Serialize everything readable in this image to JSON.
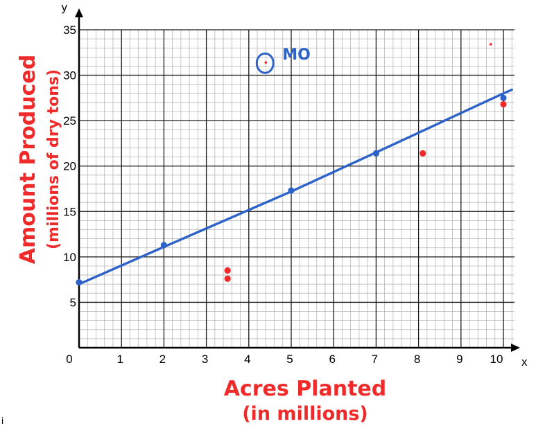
{
  "chart_data": {
    "type": "scatter",
    "xlabel": "Acres Planted (in millions)",
    "xlabel_lines": [
      "Acres Planted",
      "(in millions)"
    ],
    "ylabel": "Amount Produced (millions of dry tons)",
    "ylabel_lines": [
      "Amount Produced",
      "(millions of dry tons)"
    ],
    "x_axis_letter": "x",
    "y_axis_letter": "y",
    "xlim": [
      0,
      10
    ],
    "ylim": [
      0,
      35
    ],
    "x_ticks": [
      "0",
      "1",
      "2",
      "3",
      "4",
      "5",
      "6",
      "7",
      "8",
      "9",
      "10"
    ],
    "y_ticks": [
      "5",
      "10",
      "15",
      "20",
      "25",
      "30",
      "35"
    ],
    "grid": true,
    "series": [
      {
        "color": "#ee2a2a",
        "points": [
          {
            "x": 3.5,
            "y": 8.5
          },
          {
            "x": 3.5,
            "y": 7.6
          },
          {
            "x": 4.4,
            "y": 31.4
          },
          {
            "x": 8.1,
            "y": 21.4
          },
          {
            "x": 9.7,
            "y": 33.4
          },
          {
            "x": 10.0,
            "y": 26.8
          }
        ]
      },
      {
        "color": "#2d62c8",
        "points": [
          {
            "x": 0.0,
            "y": 7.2
          },
          {
            "x": 2.0,
            "y": 11.3
          },
          {
            "x": 5.0,
            "y": 17.3
          },
          {
            "x": 7.0,
            "y": 21.4
          },
          {
            "x": 10.0,
            "y": 27.5
          }
        ]
      }
    ],
    "trend_line": {
      "color": "#2d62c8",
      "points": [
        {
          "x": 0.0,
          "y": 7.0
        },
        {
          "x": 2.0,
          "y": 11.1
        },
        {
          "x": 5.0,
          "y": 17.2
        },
        {
          "x": 7.0,
          "y": 21.5
        },
        {
          "x": 10.0,
          "y": 28.0
        },
        {
          "x": 10.2,
          "y": 28.4
        }
      ]
    },
    "annotations": [
      {
        "text": "MO",
        "x": 4.4,
        "y": 31.4
      }
    ]
  },
  "stray_mark": "i"
}
